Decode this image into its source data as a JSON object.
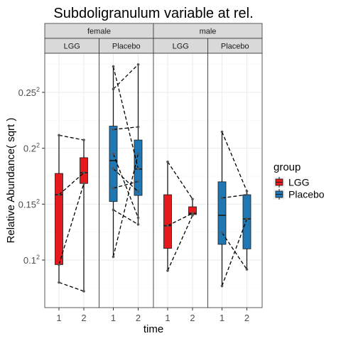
{
  "chart_data": {
    "type": "boxplot",
    "title": "Subdoligranulum variable at rel.",
    "xlabel": "time",
    "ylabel": "Relative Abundance( sqrt )",
    "y_scale": "sqrt",
    "ylim": [
      0.0033,
      0.0812
    ],
    "y_ticks": [
      {
        "value": 0.01,
        "label": "0.1",
        "sup": "2"
      },
      {
        "value": 0.0225,
        "label": "0.15",
        "sup": "2"
      },
      {
        "value": 0.04,
        "label": "0.2",
        "sup": "2"
      },
      {
        "value": 0.0625,
        "label": "0.25",
        "sup": "2"
      }
    ],
    "x_categories": [
      "1",
      "2"
    ],
    "facet_rows": [
      "female",
      "male"
    ],
    "facet_cols": [
      "LGG",
      "Placebo",
      "LGG",
      "Placebo"
    ],
    "grid": true,
    "legend": {
      "title": "group",
      "position": "right",
      "items": [
        {
          "name": "LGG",
          "color": "#e41a1c"
        },
        {
          "name": "Placebo",
          "color": "#1f78b4"
        }
      ]
    },
    "panels": [
      {
        "sex": "female",
        "group": "LGG",
        "color": "#e41a1c",
        "boxes": [
          {
            "time": "1",
            "min": 0.0064,
            "q1": 0.0092,
            "median": 0.0251,
            "q3": 0.0315,
            "max": 0.0448
          },
          {
            "time": "2",
            "min": 0.0052,
            "q1": 0.0284,
            "median": 0.0317,
            "q3": 0.0367,
            "max": 0.043
          }
        ],
        "points": [
          {
            "time": "1",
            "y": 0.0448
          },
          {
            "time": "1",
            "y": 0.0251
          },
          {
            "time": "1",
            "y": 0.0092
          },
          {
            "time": "1",
            "y": 0.0064
          },
          {
            "time": "2",
            "y": 0.043
          },
          {
            "time": "2",
            "y": 0.0317
          },
          {
            "time": "2",
            "y": 0.0284
          },
          {
            "time": "2",
            "y": 0.0052
          }
        ],
        "pairs": [
          [
            0.0448,
            0.043
          ],
          [
            0.0251,
            0.0317
          ],
          [
            0.0092,
            0.0284
          ],
          [
            0.0064,
            0.0052
          ]
        ]
      },
      {
        "sex": "female",
        "group": "Placebo",
        "color": "#1f78b4",
        "boxes": [
          {
            "time": "1",
            "min": 0.0106,
            "q1": 0.0232,
            "median": 0.0357,
            "q3": 0.0483,
            "max": 0.0746
          },
          {
            "time": "2",
            "min": 0.0174,
            "q1": 0.0249,
            "median": 0.0329,
            "q3": 0.043,
            "max": 0.0756
          }
        ],
        "points": [
          {
            "time": "1",
            "y": 0.0746
          },
          {
            "time": "1",
            "y": 0.064
          },
          {
            "time": "1",
            "y": 0.047
          },
          {
            "time": "1",
            "y": 0.038
          },
          {
            "time": "1",
            "y": 0.033
          },
          {
            "time": "1",
            "y": 0.027
          },
          {
            "time": "1",
            "y": 0.021
          },
          {
            "time": "1",
            "y": 0.0106
          },
          {
            "time": "2",
            "y": 0.0756
          },
          {
            "time": "2",
            "y": 0.048
          },
          {
            "time": "2",
            "y": 0.038
          },
          {
            "time": "2",
            "y": 0.033
          },
          {
            "time": "2",
            "y": 0.029
          },
          {
            "time": "2",
            "y": 0.026
          },
          {
            "time": "2",
            "y": 0.019
          },
          {
            "time": "2",
            "y": 0.0174
          }
        ],
        "pairs": [
          [
            0.0746,
            0.033
          ],
          [
            0.064,
            0.0756
          ],
          [
            0.047,
            0.048
          ],
          [
            0.038,
            0.019
          ],
          [
            0.033,
            0.026
          ],
          [
            0.027,
            0.029
          ],
          [
            0.021,
            0.0174
          ],
          [
            0.0106,
            0.038
          ]
        ]
      },
      {
        "sex": "male",
        "group": "LGG",
        "color": "#e41a1c",
        "boxes": [
          {
            "time": "1",
            "min": 0.0082,
            "q1": 0.0122,
            "median": 0.0171,
            "q3": 0.0251,
            "max": 0.0353
          },
          {
            "time": "2",
            "min": 0.0196,
            "q1": 0.0198,
            "median": 0.0201,
            "q3": 0.0218,
            "max": 0.0239
          }
        ],
        "points": [
          {
            "time": "1",
            "y": 0.0353
          },
          {
            "time": "1",
            "y": 0.0171
          },
          {
            "time": "1",
            "y": 0.0082
          },
          {
            "time": "2",
            "y": 0.0239
          },
          {
            "time": "2",
            "y": 0.0201
          },
          {
            "time": "2",
            "y": 0.0196
          }
        ],
        "pairs": [
          [
            0.0353,
            0.0239
          ],
          [
            0.0171,
            0.0201
          ],
          [
            0.0082,
            0.0196
          ]
        ]
      },
      {
        "sex": "male",
        "group": "Placebo",
        "color": "#1f78b4",
        "boxes": [
          {
            "time": "1",
            "min": 0.0059,
            "q1": 0.013,
            "median": 0.0196,
            "q3": 0.0289,
            "max": 0.0461
          },
          {
            "time": "2",
            "min": 0.0084,
            "q1": 0.0121,
            "median": 0.0187,
            "q3": 0.0251,
            "max": 0.0261
          }
        ],
        "points": [
          {
            "time": "1",
            "y": 0.0461
          },
          {
            "time": "1",
            "y": 0.0242
          },
          {
            "time": "1",
            "y": 0.0155
          },
          {
            "time": "1",
            "y": 0.0059
          },
          {
            "time": "2",
            "y": 0.0261
          },
          {
            "time": "2",
            "y": 0.0251
          },
          {
            "time": "2",
            "y": 0.0187
          },
          {
            "time": "2",
            "y": 0.0084
          }
        ],
        "pairs": [
          [
            0.0461,
            0.0261
          ],
          [
            0.0242,
            0.0251
          ],
          [
            0.0155,
            0.0084
          ],
          [
            0.0059,
            0.0187
          ]
        ]
      }
    ]
  }
}
